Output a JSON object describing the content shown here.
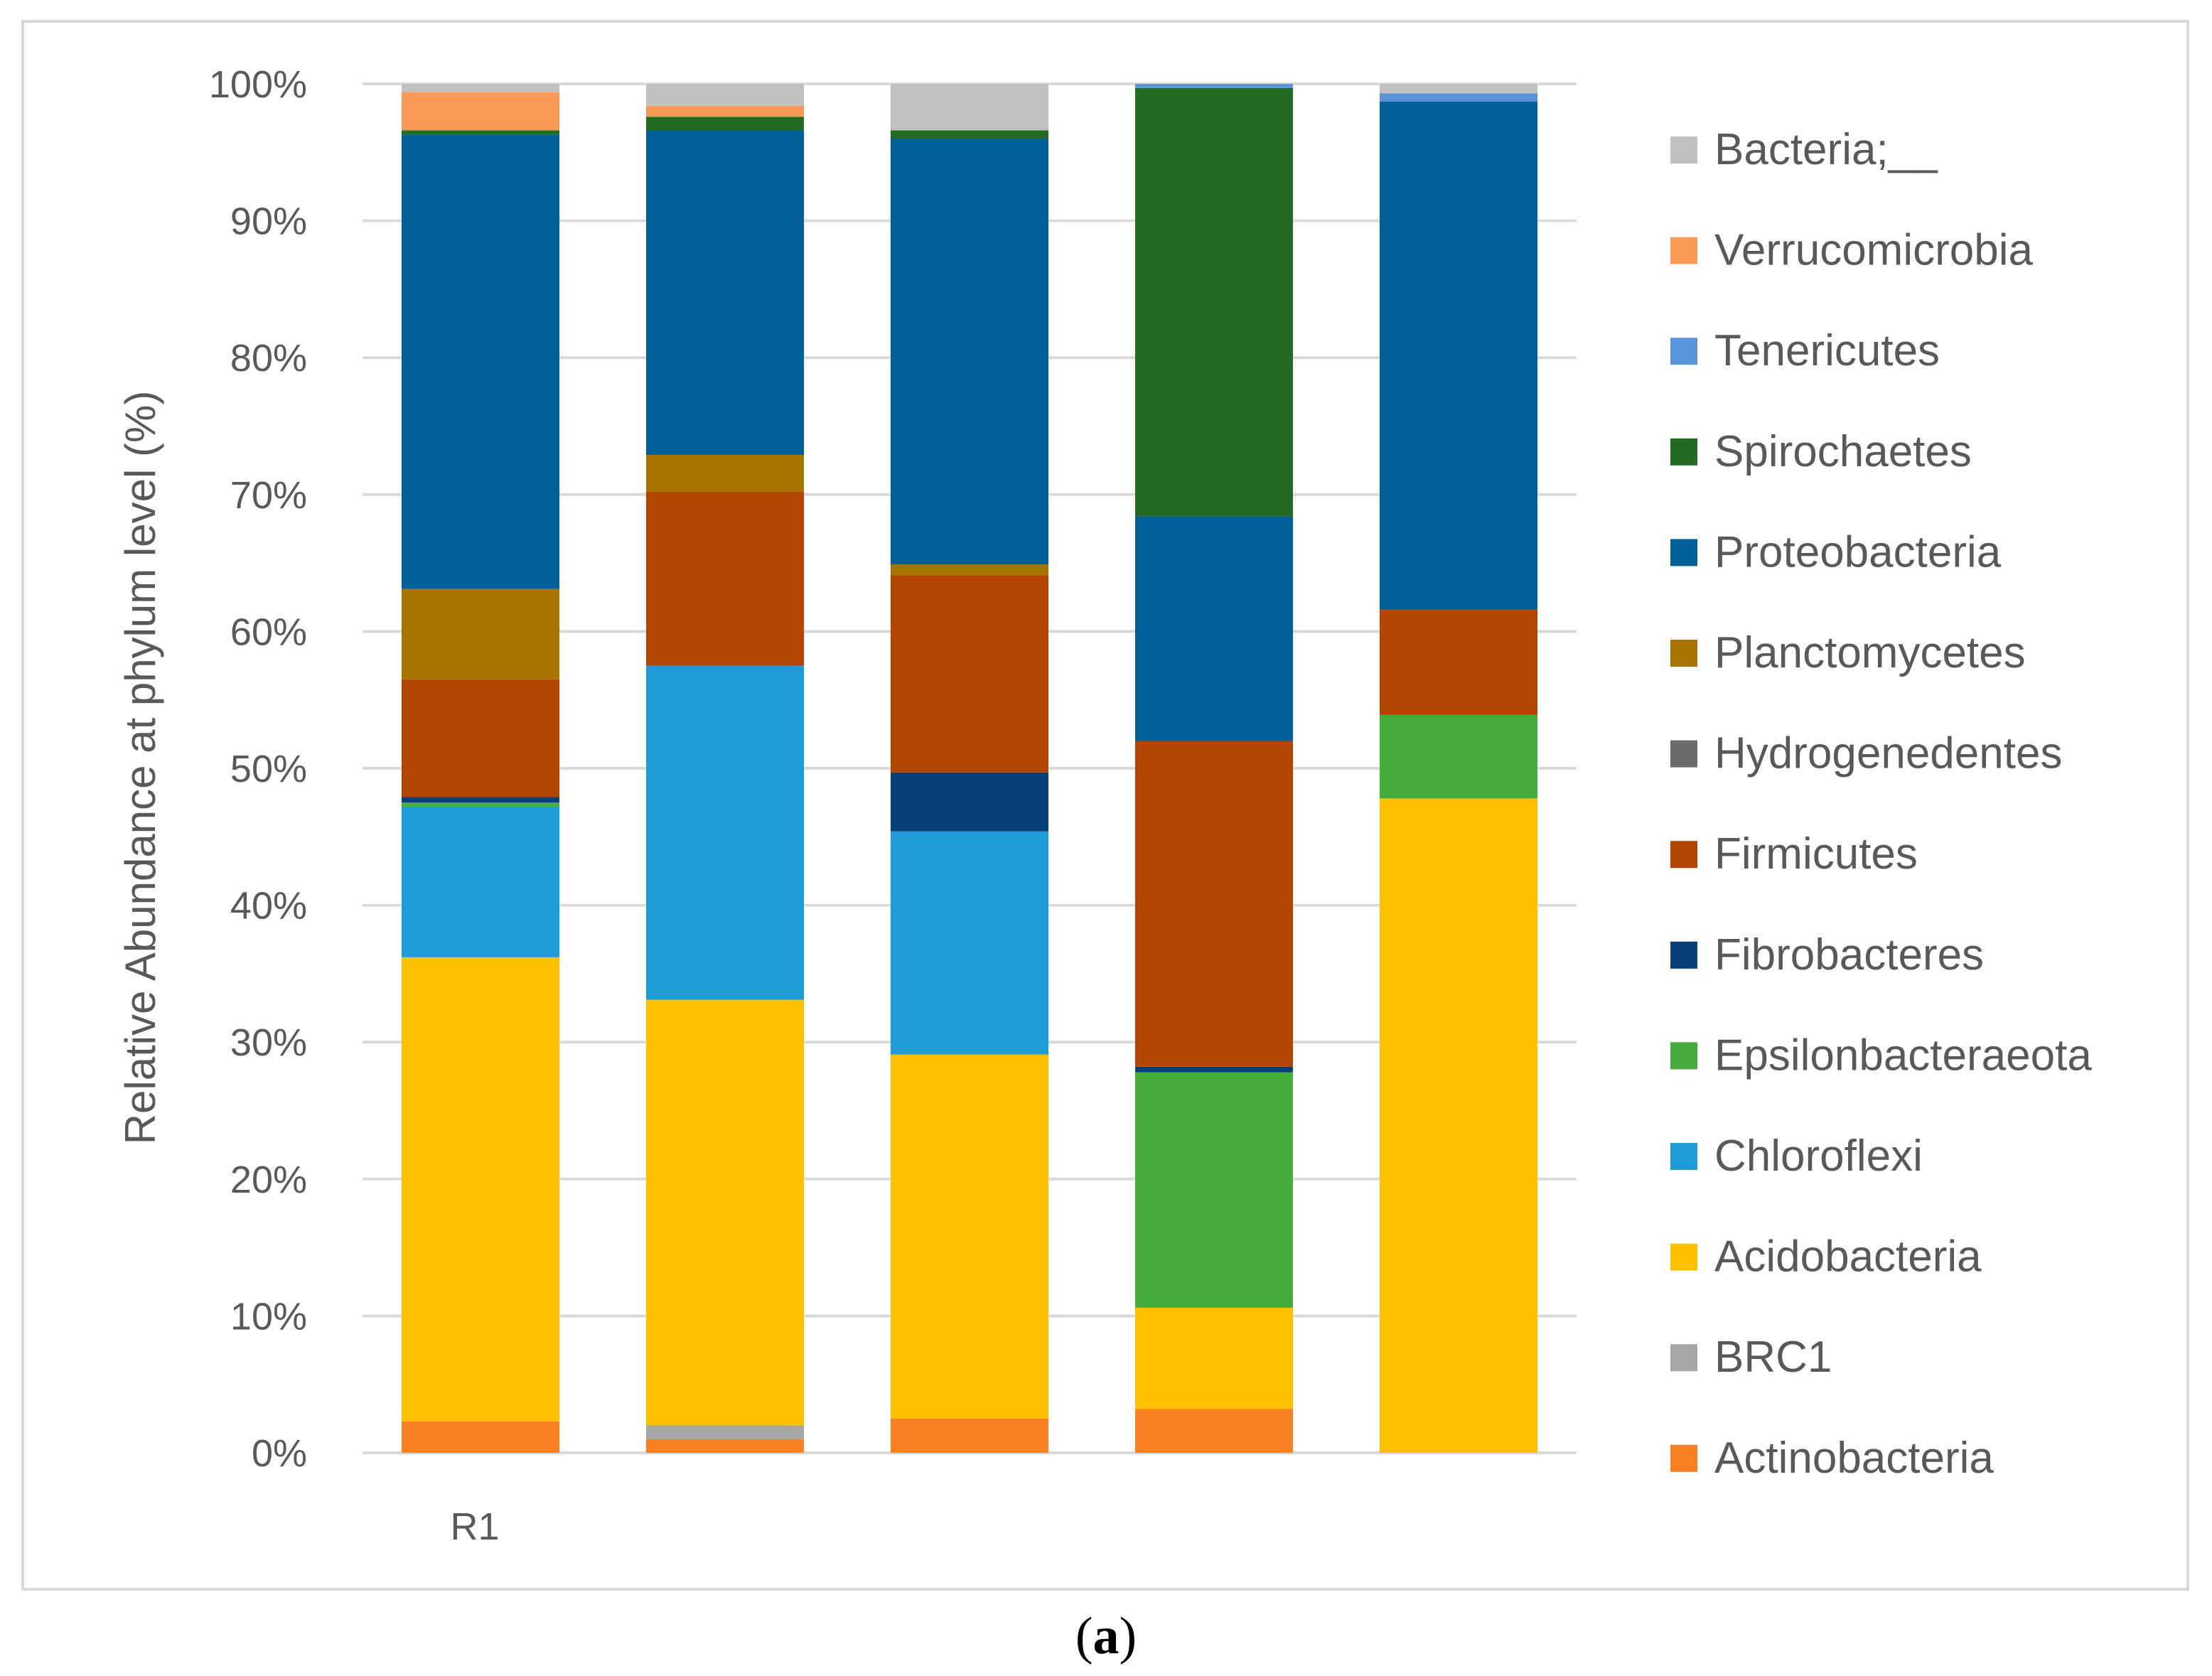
{
  "chart_data": {
    "type": "bar",
    "stacked": true,
    "stack_mode": "percent",
    "title": "",
    "xlabel": "",
    "ylabel": "Relative Abundance at phylum level (%)",
    "ylim": [
      0,
      100
    ],
    "yticks": [
      "0%",
      "10%",
      "20%",
      "30%",
      "40%",
      "50%",
      "60%",
      "70%",
      "80%",
      "90%",
      "100%"
    ],
    "grid": true,
    "legend_position": "right",
    "categories": [
      "R1",
      "",
      "",
      "",
      ""
    ],
    "series": [
      {
        "name": "Actinobacteria",
        "color": "#F97F23",
        "values": [
          2.3,
          1.0,
          2.5,
          3.2,
          0.0
        ]
      },
      {
        "name": "BRC1",
        "color": "#A5A5A5",
        "values": [
          0.0,
          1.0,
          0.0,
          0.0,
          0.0
        ]
      },
      {
        "name": "Acidobacteria",
        "color": "#FFC000",
        "values": [
          33.9,
          31.1,
          26.6,
          7.4,
          47.8
        ]
      },
      {
        "name": "Chloroflexi",
        "color": "#1E9CD7",
        "values": [
          11.0,
          24.4,
          16.3,
          0.0,
          0.0
        ]
      },
      {
        "name": "Epsilonbacteraeota",
        "color": "#44AD3B",
        "values": [
          0.3,
          0.0,
          0.0,
          17.2,
          6.1
        ]
      },
      {
        "name": "Fibrobacteres",
        "color": "#083F76",
        "values": [
          0.4,
          0.0,
          4.3,
          0.4,
          0.0
        ]
      },
      {
        "name": "Firmicutes",
        "color": "#B34500",
        "values": [
          8.6,
          12.7,
          14.4,
          23.8,
          7.7
        ]
      },
      {
        "name": "Hydrogenedentes",
        "color": "#6B6B6B",
        "values": [
          0.0,
          0.0,
          0.0,
          0.0,
          0.0
        ]
      },
      {
        "name": "Planctomycetes",
        "color": "#A77400",
        "values": [
          6.6,
          2.7,
          0.8,
          0.0,
          0.0
        ]
      },
      {
        "name": "Proteobacteria",
        "color": "#005F97",
        "values": [
          33.2,
          23.7,
          31.1,
          16.4,
          37.1
        ]
      },
      {
        "name": "Spirochaetes",
        "color": "#236B23",
        "values": [
          0.3,
          1.0,
          0.6,
          31.3,
          0.0
        ]
      },
      {
        "name": "Tenericutes",
        "color": "#5B93D8",
        "values": [
          0.0,
          0.0,
          0.0,
          0.3,
          0.6
        ]
      },
      {
        "name": "Verrucomicrobia",
        "color": "#FB9959",
        "values": [
          2.8,
          0.8,
          0.0,
          0.0,
          0.0
        ]
      },
      {
        "name": "Bacteria;__",
        "color": "#C0C0C0",
        "values": [
          0.6,
          1.6,
          3.4,
          0.0,
          0.7
        ]
      }
    ]
  },
  "caption": {
    "open": "(",
    "letter": "a",
    "close": ")"
  }
}
